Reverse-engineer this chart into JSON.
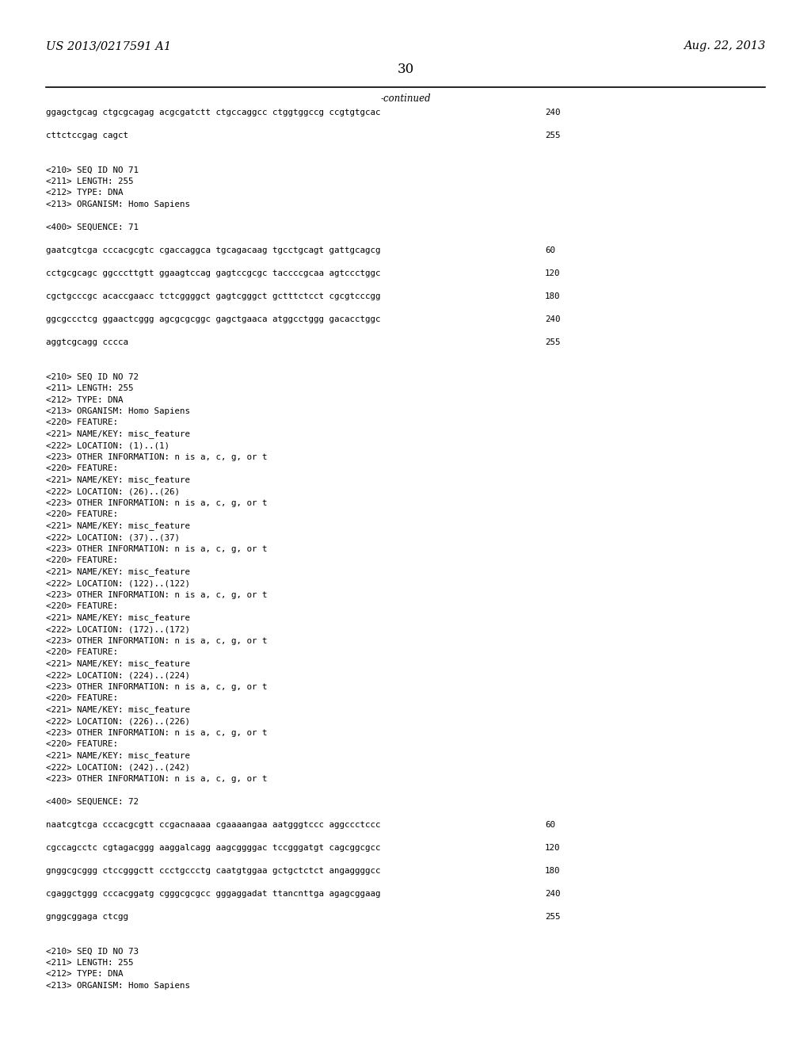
{
  "background_color": "#ffffff",
  "header_left": "US 2013/0217591 A1",
  "header_right": "Aug. 22, 2013",
  "page_number": "30",
  "continued_label": "-continued",
  "mono_font_size": 7.8,
  "header_font_size": 10.5,
  "page_num_font_size": 12,
  "continued_font_size": 8.5,
  "lines": [
    {
      "text": "ggagctgcag ctgcgcagag acgcgatctt ctgccaggcc ctggtggccg ccgtgtgcac",
      "num": "240"
    },
    {
      "text": "",
      "num": ""
    },
    {
      "text": "cttctccgag cagct",
      "num": "255"
    },
    {
      "text": "",
      "num": ""
    },
    {
      "text": "",
      "num": ""
    },
    {
      "text": "<210> SEQ ID NO 71",
      "num": ""
    },
    {
      "text": "<211> LENGTH: 255",
      "num": ""
    },
    {
      "text": "<212> TYPE: DNA",
      "num": ""
    },
    {
      "text": "<213> ORGANISM: Homo Sapiens",
      "num": ""
    },
    {
      "text": "",
      "num": ""
    },
    {
      "text": "<400> SEQUENCE: 71",
      "num": ""
    },
    {
      "text": "",
      "num": ""
    },
    {
      "text": "gaatcgtcga cccacgcgtc cgaccaggca tgcagacaag tgcctgcagt gattgcagcg",
      "num": "60"
    },
    {
      "text": "",
      "num": ""
    },
    {
      "text": "cctgcgcagc ggcccttgtt ggaagtccag gagtccgcgc taccccgcaa agtccctggc",
      "num": "120"
    },
    {
      "text": "",
      "num": ""
    },
    {
      "text": "cgctgcccgc acaccgaacc tctcggggct gagtcgggct gctttctcct cgcgtcccgg",
      "num": "180"
    },
    {
      "text": "",
      "num": ""
    },
    {
      "text": "ggcgccctcg ggaactcggg agcgcgcggc gagctgaaca atggcctggg gacacctggc",
      "num": "240"
    },
    {
      "text": "",
      "num": ""
    },
    {
      "text": "aggtcgcagg cccca",
      "num": "255"
    },
    {
      "text": "",
      "num": ""
    },
    {
      "text": "",
      "num": ""
    },
    {
      "text": "<210> SEQ ID NO 72",
      "num": ""
    },
    {
      "text": "<211> LENGTH: 255",
      "num": ""
    },
    {
      "text": "<212> TYPE: DNA",
      "num": ""
    },
    {
      "text": "<213> ORGANISM: Homo Sapiens",
      "num": ""
    },
    {
      "text": "<220> FEATURE:",
      "num": ""
    },
    {
      "text": "<221> NAME/KEY: misc_feature",
      "num": ""
    },
    {
      "text": "<222> LOCATION: (1)..(1)",
      "num": ""
    },
    {
      "text": "<223> OTHER INFORMATION: n is a, c, g, or t",
      "num": ""
    },
    {
      "text": "<220> FEATURE:",
      "num": ""
    },
    {
      "text": "<221> NAME/KEY: misc_feature",
      "num": ""
    },
    {
      "text": "<222> LOCATION: (26)..(26)",
      "num": ""
    },
    {
      "text": "<223> OTHER INFORMATION: n is a, c, g, or t",
      "num": ""
    },
    {
      "text": "<220> FEATURE:",
      "num": ""
    },
    {
      "text": "<221> NAME/KEY: misc_feature",
      "num": ""
    },
    {
      "text": "<222> LOCATION: (37)..(37)",
      "num": ""
    },
    {
      "text": "<223> OTHER INFORMATION: n is a, c, g, or t",
      "num": ""
    },
    {
      "text": "<220> FEATURE:",
      "num": ""
    },
    {
      "text": "<221> NAME/KEY: misc_feature",
      "num": ""
    },
    {
      "text": "<222> LOCATION: (122)..(122)",
      "num": ""
    },
    {
      "text": "<223> OTHER INFORMATION: n is a, c, g, or t",
      "num": ""
    },
    {
      "text": "<220> FEATURE:",
      "num": ""
    },
    {
      "text": "<221> NAME/KEY: misc_feature",
      "num": ""
    },
    {
      "text": "<222> LOCATION: (172)..(172)",
      "num": ""
    },
    {
      "text": "<223> OTHER INFORMATION: n is a, c, g, or t",
      "num": ""
    },
    {
      "text": "<220> FEATURE:",
      "num": ""
    },
    {
      "text": "<221> NAME/KEY: misc_feature",
      "num": ""
    },
    {
      "text": "<222> LOCATION: (224)..(224)",
      "num": ""
    },
    {
      "text": "<223> OTHER INFORMATION: n is a, c, g, or t",
      "num": ""
    },
    {
      "text": "<220> FEATURE:",
      "num": ""
    },
    {
      "text": "<221> NAME/KEY: misc_feature",
      "num": ""
    },
    {
      "text": "<222> LOCATION: (226)..(226)",
      "num": ""
    },
    {
      "text": "<223> OTHER INFORMATION: n is a, c, g, or t",
      "num": ""
    },
    {
      "text": "<220> FEATURE:",
      "num": ""
    },
    {
      "text": "<221> NAME/KEY: misc_feature",
      "num": ""
    },
    {
      "text": "<222> LOCATION: (242)..(242)",
      "num": ""
    },
    {
      "text": "<223> OTHER INFORMATION: n is a, c, g, or t",
      "num": ""
    },
    {
      "text": "",
      "num": ""
    },
    {
      "text": "<400> SEQUENCE: 72",
      "num": ""
    },
    {
      "text": "",
      "num": ""
    },
    {
      "text": "naatcgtcga cccacgcgtt ccgacnaaaa cgaaaangaa aatgggtccc aggccctccc",
      "num": "60"
    },
    {
      "text": "",
      "num": ""
    },
    {
      "text": "cgccagcctc cgtagacggg aaggalcagg aagcggggac tccgggatgt cagcggcgcc",
      "num": "120"
    },
    {
      "text": "",
      "num": ""
    },
    {
      "text": "gnggcgcggg ctccgggctt ccctgccctg caatgtggaa gctgctctct angaggggcc",
      "num": "180"
    },
    {
      "text": "",
      "num": ""
    },
    {
      "text": "cgaggctggg cccacggatg cgggcgcgcc gggaggadat ttancnttga agagcggaag",
      "num": "240"
    },
    {
      "text": "",
      "num": ""
    },
    {
      "text": "gnggcggaga ctcgg",
      "num": "255"
    },
    {
      "text": "",
      "num": ""
    },
    {
      "text": "",
      "num": ""
    },
    {
      "text": "<210> SEQ ID NO 73",
      "num": ""
    },
    {
      "text": "<211> LENGTH: 255",
      "num": ""
    },
    {
      "text": "<212> TYPE: DNA",
      "num": ""
    },
    {
      "text": "<213> ORGANISM: Homo Sapiens",
      "num": ""
    }
  ]
}
